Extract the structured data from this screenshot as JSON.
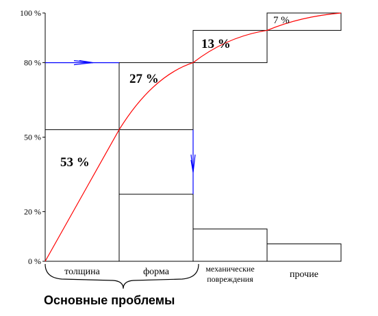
{
  "chart_data": {
    "type": "bar",
    "categories": [
      "толщина",
      "форма",
      "механические повреждения",
      "прочие"
    ],
    "values": [
      53,
      27,
      13,
      7
    ],
    "value_labels": [
      "53 %",
      "27 %",
      "13 %",
      "7 %"
    ],
    "cumulative": [
      53,
      80,
      93,
      100
    ],
    "y_ticks": [
      0,
      20,
      50,
      80,
      100
    ],
    "y_tick_labels": [
      "0 %",
      "20 %",
      "50 %",
      "80 %",
      "100 %"
    ],
    "ylim": [
      0,
      100
    ],
    "xlabel": "Основные проблемы",
    "grid": false,
    "colors": {
      "cumulative_line": "#ff0000",
      "arrows": "#0000ff",
      "bars": "#000000"
    }
  }
}
